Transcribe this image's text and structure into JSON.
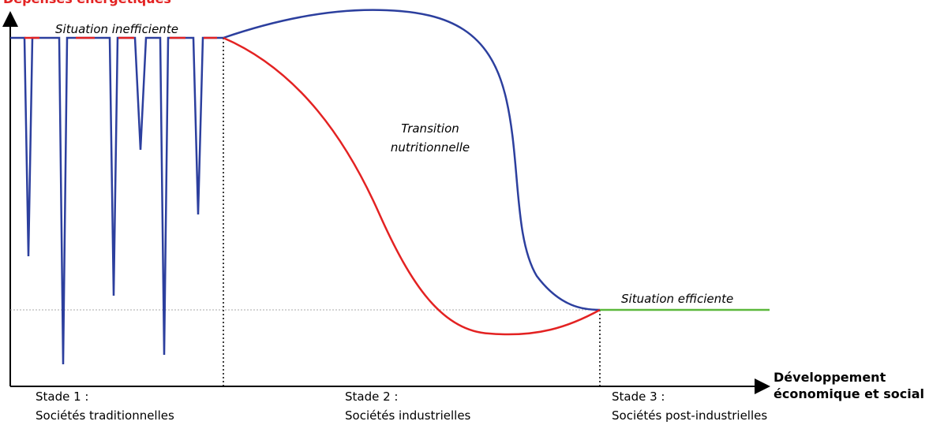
{
  "y_axis_label": "Dépenses énergétiques",
  "x_axis_label": [
    "Développement",
    "économique et social"
  ],
  "annotations": {
    "inefficient": "Situation inefficiente",
    "transition": [
      "Transition",
      "nutritionnelle"
    ],
    "efficient": "Situation efficiente"
  },
  "stages": [
    {
      "title": "Stade 1 :",
      "label": "Sociétés traditionnelles"
    },
    {
      "title": "Stade 2 :",
      "label": "Sociétés industrielles"
    },
    {
      "title": "Stade 3 :",
      "label": "Sociétés post-industrielles"
    }
  ]
}
